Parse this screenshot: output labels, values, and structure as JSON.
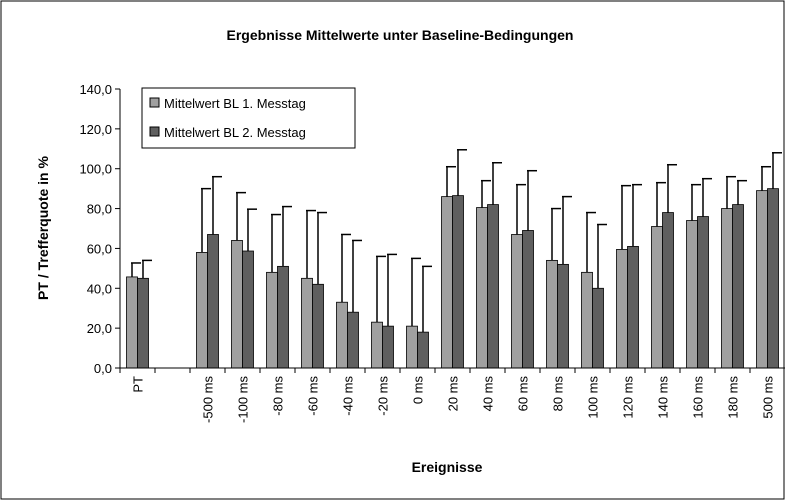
{
  "chart_data": {
    "type": "bar",
    "title": "Ergebnisse Mittelwerte unter Baseline-Bedingungen",
    "x_label": "Ereignisse",
    "y_label": "PT / Trefferquote in %",
    "categories": [
      "PT",
      null,
      "-500 ms",
      "-100 ms",
      "-80 ms",
      "-60 ms",
      "-40 ms",
      "-20 ms",
      "0 ms",
      "20 ms",
      "40 ms",
      "60 ms",
      "80 ms",
      "100 ms",
      "120 ms",
      "140 ms",
      "160 ms",
      "180 ms",
      "500 ms"
    ],
    "series": [
      {
        "name": "Mittelwert BL 1. Messtag",
        "color": "#a0a0a0",
        "values": [
          45.7,
          null,
          58,
          64,
          48,
          45,
          33,
          23,
          21,
          86,
          80.5,
          67,
          54,
          48,
          59.5,
          71,
          74,
          80,
          89
        ],
        "errors": [
          7,
          null,
          32,
          24,
          29,
          34,
          34,
          33,
          34,
          15,
          13.5,
          25,
          26,
          30,
          32,
          22,
          18,
          16,
          12
        ]
      },
      {
        "name": "Mittelwert BL 2. Messtag",
        "color": "#5f5f5f",
        "values": [
          45,
          null,
          67,
          58.7,
          51,
          42,
          28,
          21,
          18,
          86.5,
          82,
          69,
          52,
          40,
          61,
          78,
          76,
          82,
          90
        ],
        "errors": [
          9,
          null,
          29,
          21,
          30,
          36,
          36,
          36,
          33,
          23,
          21,
          30,
          34,
          32,
          31,
          24,
          19,
          12,
          18
        ]
      }
    ],
    "ylim": [
      0,
      140
    ],
    "yticks": [
      {
        "value": 0,
        "label": "0,0"
      },
      {
        "value": 20,
        "label": "20,0"
      },
      {
        "value": 40,
        "label": "40,0"
      },
      {
        "value": 60,
        "label": "60,0"
      },
      {
        "value": 80,
        "label": "80,0"
      },
      {
        "value": 100,
        "label": "100,0"
      },
      {
        "value": 120,
        "label": "120,0"
      },
      {
        "value": 140,
        "label": "140,0"
      }
    ],
    "legend": "top-left"
  }
}
